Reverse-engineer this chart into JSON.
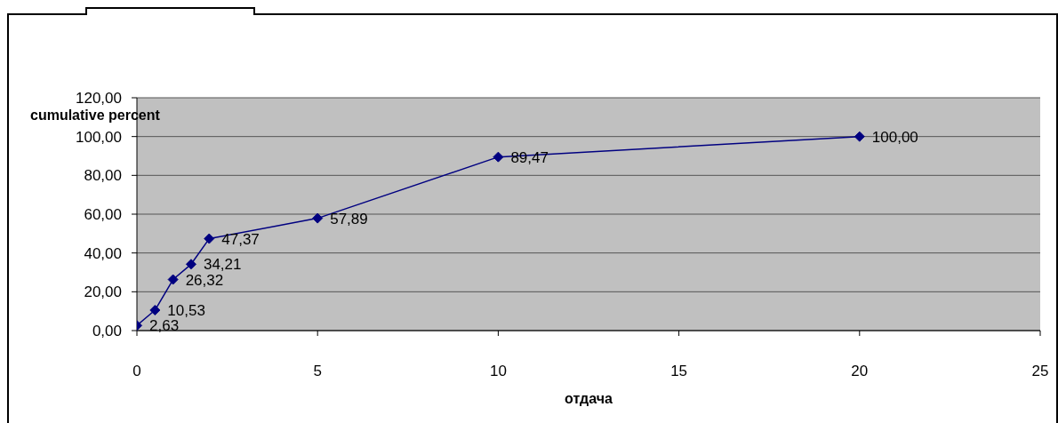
{
  "chart_data": {
    "type": "line",
    "xlabel": "отдача",
    "ylabel": "cumulative percent",
    "x": [
      0,
      0.5,
      1,
      1.5,
      2,
      5,
      10,
      20
    ],
    "series": [
      {
        "color": "#000080",
        "values": [
          2.63,
          10.53,
          26.32,
          34.21,
          47.37,
          57.89,
          89.47,
          100.0
        ],
        "value_labels": [
          "2,63",
          "10,53",
          "26,32",
          "34,21",
          "47,37",
          "57,89",
          "89,47",
          "100,00"
        ]
      }
    ],
    "xlim": [
      0,
      25
    ],
    "xticks": [
      0,
      5,
      10,
      15,
      20,
      25
    ],
    "ylim": [
      0,
      120
    ],
    "yticks": [
      {
        "value": 0,
        "label": "0,00"
      },
      {
        "value": 20,
        "label": "20,00"
      },
      {
        "value": 40,
        "label": "40,00"
      },
      {
        "value": 60,
        "label": "60,00"
      },
      {
        "value": 80,
        "label": "80,00"
      },
      {
        "value": 100,
        "label": "100,00"
      },
      {
        "value": 120,
        "label": "120,00"
      }
    ],
    "grid": "y",
    "marker": "diamond"
  }
}
